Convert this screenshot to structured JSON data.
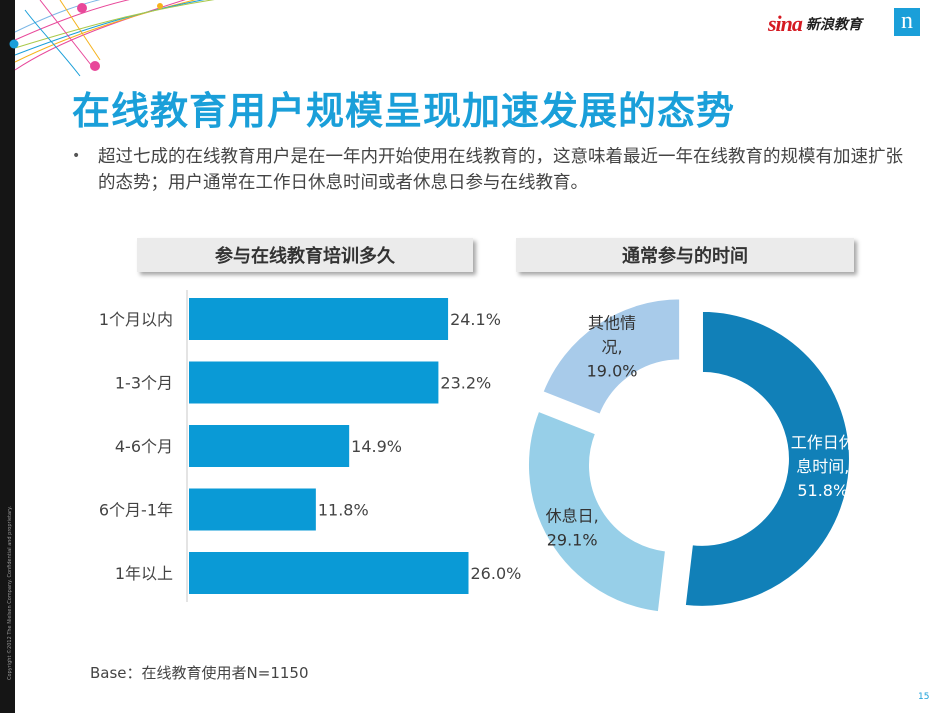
{
  "brand": {
    "sina": "sina",
    "edu": "新浪教育",
    "logo_letter": "n"
  },
  "copyright": "Copyright ©2012 The Nielsen Company. Confidential and proprietary.",
  "title": "在线教育用户规模呈现加速发展的态势",
  "bullet": "超过七成的在线教育用户是在一年内开始使用在线教育的，这意味着最近一年在线教育的规模有加速扩张的态势；用户通常在工作日休息时间或者休息日参与在线教育。",
  "bullet_marker": "•",
  "left_header": "参与在线教育培训多久",
  "right_header": "通常参与的时间",
  "base_note": "Base：在线教育使用者N=1150",
  "page_number": "15",
  "chart_data": [
    {
      "type": "bar",
      "orientation": "horizontal",
      "title": "参与在线教育培训多久",
      "categories": [
        "1个月以内",
        "1-3个月",
        "4-6个月",
        "6个月-1年",
        "1年以上"
      ],
      "values": [
        24.1,
        23.2,
        14.9,
        11.8,
        26.0
      ],
      "value_labels": [
        "24.1%",
        "23.2%",
        "14.9%",
        "11.8%",
        "26.0%"
      ],
      "unit": "%",
      "color": "#0a9ad6"
    },
    {
      "type": "pie",
      "style": "donut",
      "title": "通常参与的时间",
      "slices": [
        {
          "label_lines": [
            "工作日休",
            "息时间,"
          ],
          "label": "工作日休息时间",
          "value": 51.8,
          "value_label": "51.8%",
          "color": "#1180b8",
          "text_color": "#ffffff"
        },
        {
          "label_lines": [
            "休息日,"
          ],
          "label": "休息日",
          "value": 29.1,
          "value_label": "29.1%",
          "color": "#97cfe8",
          "text_color": "#333333"
        },
        {
          "label_lines": [
            "其他情",
            "况,"
          ],
          "label": "其他情况",
          "value": 19.0,
          "value_label": "19.0%",
          "color": "#a8cbea",
          "text_color": "#333333"
        }
      ]
    }
  ]
}
